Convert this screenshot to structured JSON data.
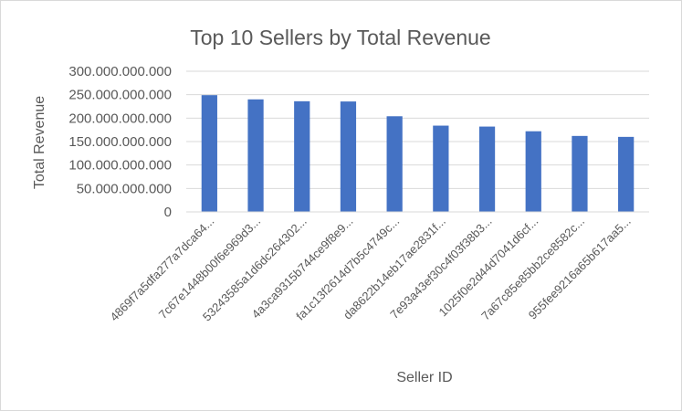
{
  "chart_data": {
    "type": "bar",
    "title": "Top 10 Sellers by Total Revenue",
    "xlabel": "Seller ID",
    "ylabel": "Total Revenue",
    "ylim": [
      0,
      300000000000
    ],
    "y_ticks": [
      0,
      50000000000,
      100000000000,
      150000000000,
      200000000000,
      250000000000,
      300000000000
    ],
    "y_tick_labels": [
      "0",
      "50.000.000.000",
      "100.000.000.000",
      "150.000.000.000",
      "200.000.000.000",
      "250.000.000.000",
      "300.000.000.000"
    ],
    "categories": [
      "4869f7a5dfa277a7dca64...",
      "7c67e1448b00f6e969d3...",
      "53243585a1d6dc264302...",
      "4a3ca9315b744ce9f8e9...",
      "fa1c13f2614d7b5c4749c...",
      "da8622b14eb17ae2831f...",
      "7e93a43ef30c4f03f38b3...",
      "1025f0e2d44d7041d6cf...",
      "7a67c85e85bb2ce8582c...",
      "955fee9216a65b617aa5..."
    ],
    "values": [
      249000000000,
      240000000000,
      236000000000,
      235500000000,
      204000000000,
      184000000000,
      182000000000,
      172000000000,
      162000000000,
      160000000000
    ],
    "bar_color": "#4472c4",
    "gridlines": true,
    "legend": "none"
  }
}
